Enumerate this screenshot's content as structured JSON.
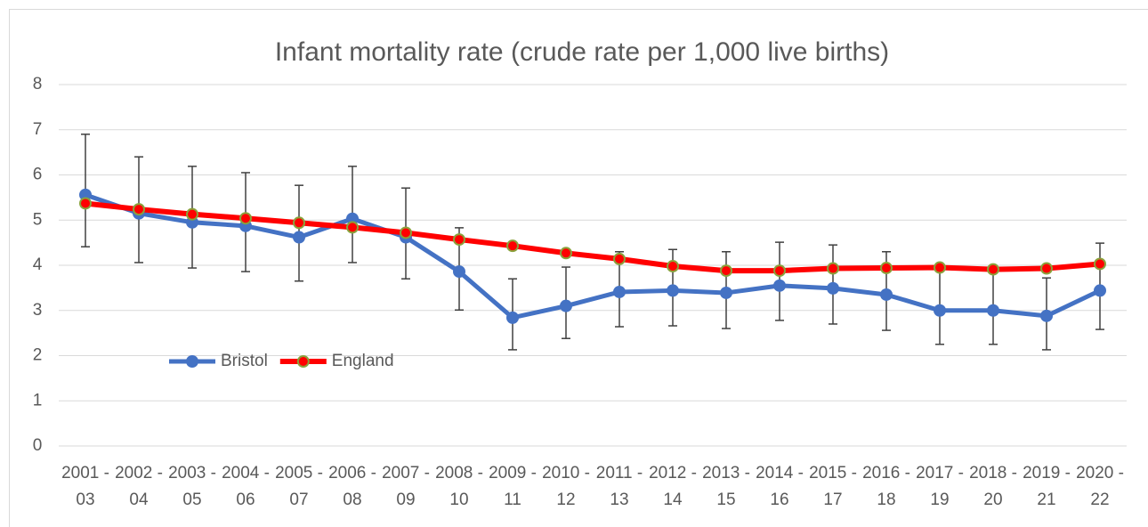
{
  "chart_data": {
    "type": "line",
    "title": "Infant mortality rate (crude rate per 1,000 live births)",
    "categories": [
      "2001 - 03",
      "2002 - 04",
      "2003 - 05",
      "2004 - 06",
      "2005 - 07",
      "2006 - 08",
      "2007 - 09",
      "2008 - 10",
      "2009 - 11",
      "2010 - 12",
      "2011 - 13",
      "2012 - 14",
      "2013 - 15",
      "2014 - 16",
      "2015 - 17",
      "2016 - 18",
      "2017 - 19",
      "2018 - 20",
      "2019 - 21",
      "2020 - 22"
    ],
    "series": [
      {
        "name": "Bristol",
        "color": "#4472c4",
        "values": [
          5.56,
          5.15,
          4.95,
          4.87,
          4.62,
          5.03,
          4.62,
          3.86,
          2.84,
          3.1,
          3.41,
          3.44,
          3.39,
          3.55,
          3.49,
          3.35,
          3.0,
          3.0,
          2.88,
          3.44
        ],
        "ci_lower": [
          4.41,
          4.06,
          3.94,
          3.86,
          3.65,
          4.06,
          3.7,
          3.01,
          2.13,
          2.38,
          2.64,
          2.66,
          2.6,
          2.78,
          2.7,
          2.56,
          2.25,
          2.25,
          2.13,
          2.58
        ],
        "ci_upper": [
          6.9,
          6.4,
          6.19,
          6.05,
          5.77,
          6.19,
          5.71,
          4.83,
          3.7,
          3.96,
          4.3,
          4.35,
          4.3,
          4.51,
          4.45,
          4.3,
          3.96,
          3.96,
          3.72,
          4.49
        ]
      },
      {
        "name": "England",
        "color": "#ff0000",
        "marker_edge_color": "#8aa23c",
        "values": [
          5.37,
          5.24,
          5.13,
          5.04,
          4.94,
          4.84,
          4.72,
          4.57,
          4.43,
          4.27,
          4.14,
          3.98,
          3.88,
          3.88,
          3.93,
          3.94,
          3.95,
          3.91,
          3.93,
          4.03
        ]
      }
    ],
    "error_bar_color": "#404040",
    "ylim": [
      0,
      8
    ],
    "yticks": [
      0,
      1,
      2,
      3,
      4,
      5,
      6,
      7,
      8
    ],
    "grid": true
  }
}
